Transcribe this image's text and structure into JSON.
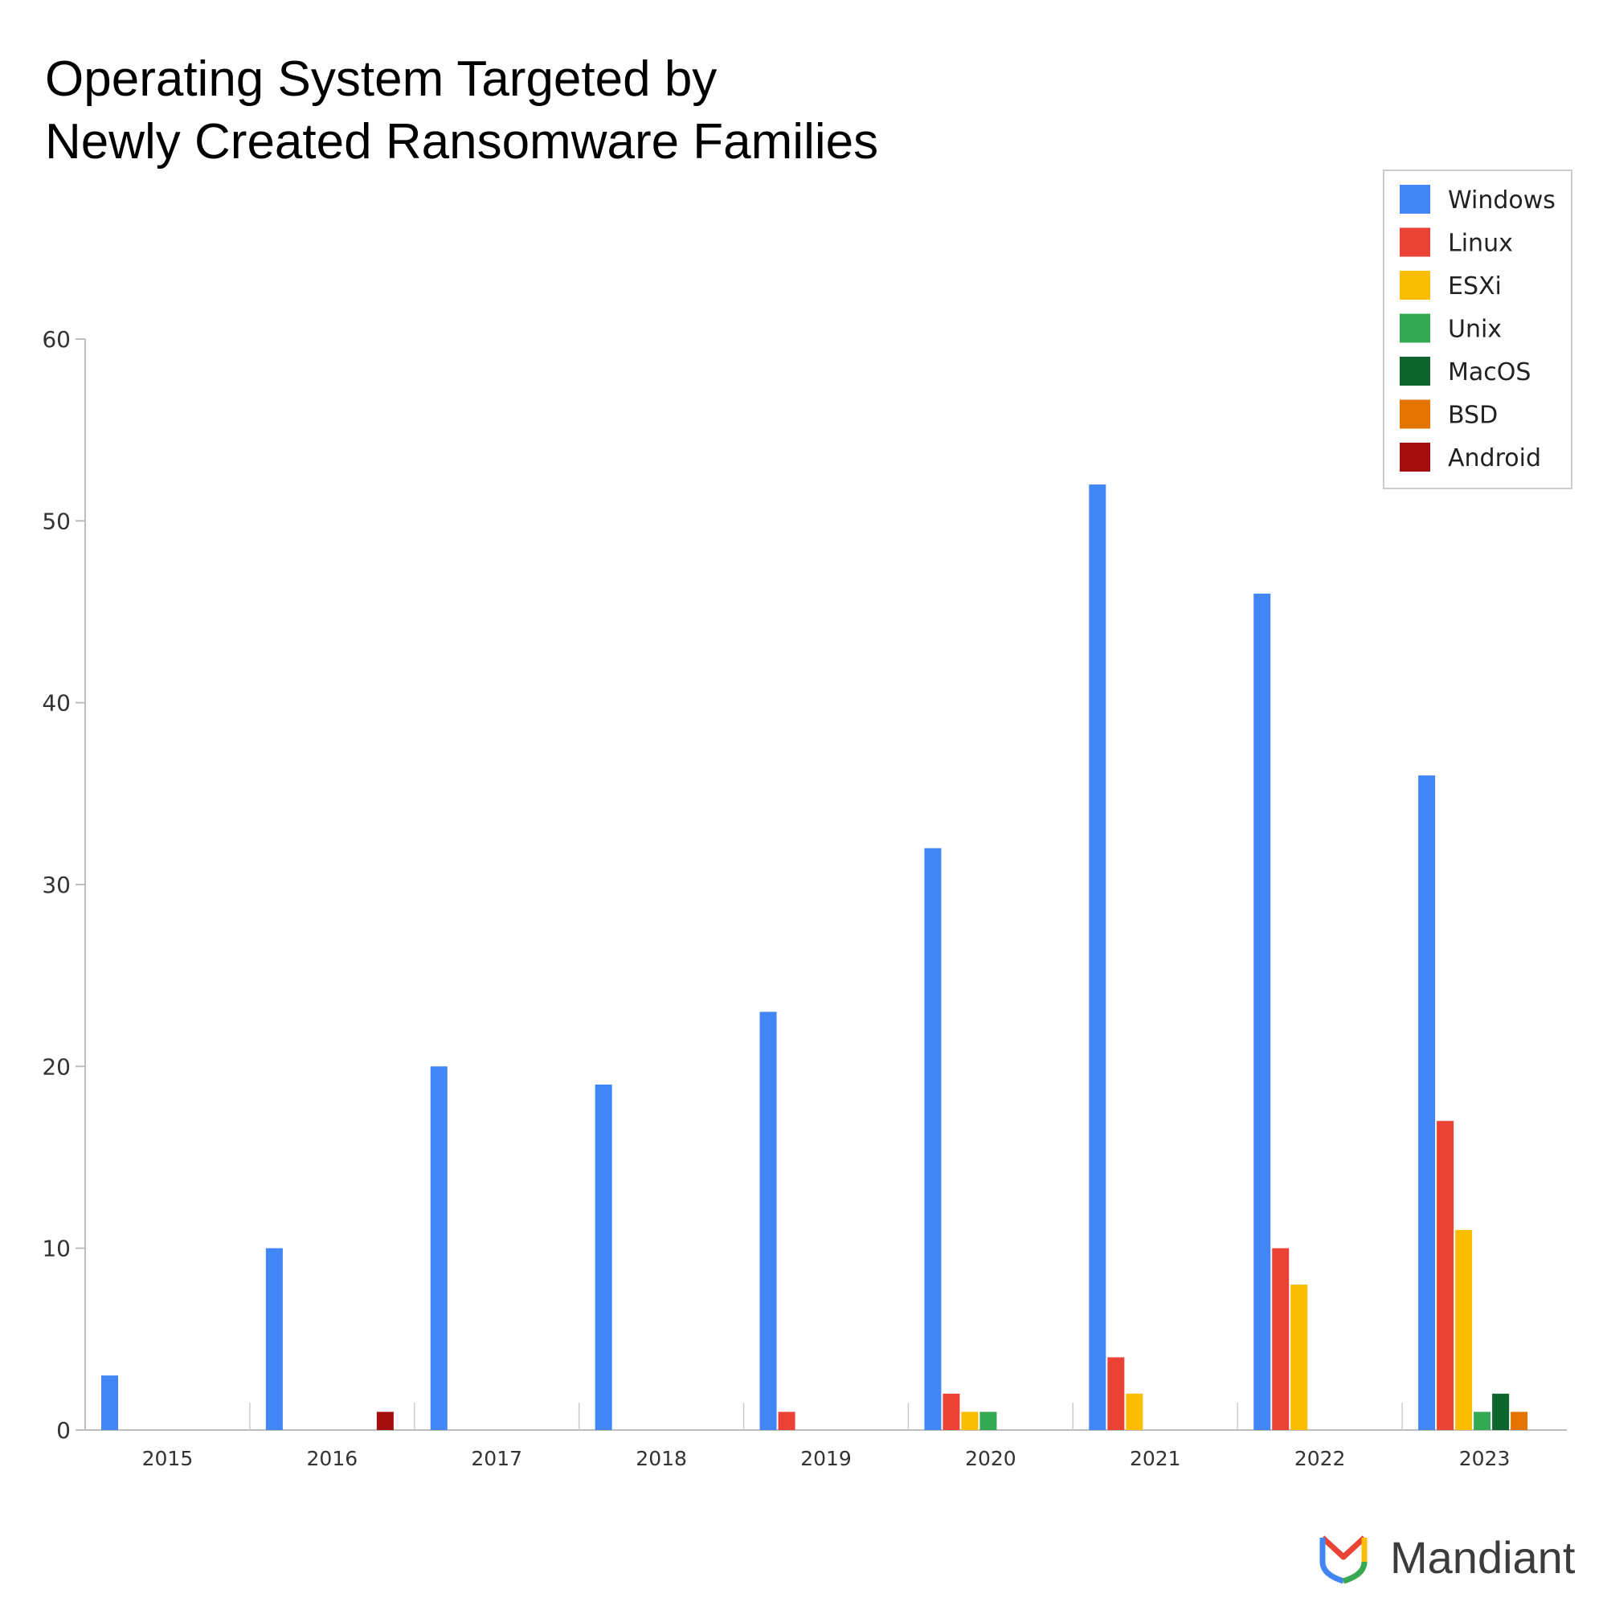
{
  "chart_data": {
    "type": "bar",
    "title_lines": [
      "Operating System Targeted by",
      "Newly Created Ransomware Families"
    ],
    "categories": [
      "2015",
      "2016",
      "2017",
      "2018",
      "2019",
      "2020",
      "2021",
      "2022",
      "2023"
    ],
    "ylim": [
      0,
      60
    ],
    "yticks": [
      "0",
      "10",
      "20",
      "30",
      "40",
      "50",
      "60"
    ],
    "grid": false,
    "legend_position": "top-right",
    "series": [
      {
        "name": "Windows",
        "color": "#4285F4",
        "values": [
          3,
          10,
          20,
          19,
          23,
          32,
          52,
          46,
          36
        ]
      },
      {
        "name": "Linux",
        "color": "#EA4335",
        "values": [
          0,
          0,
          0,
          0,
          1,
          2,
          4,
          10,
          17
        ]
      },
      {
        "name": "ESXi",
        "color": "#FBBC04",
        "values": [
          0,
          0,
          0,
          0,
          0,
          1,
          2,
          8,
          11
        ]
      },
      {
        "name": "Unix",
        "color": "#34A853",
        "values": [
          0,
          0,
          0,
          0,
          0,
          1,
          0,
          0,
          1
        ]
      },
      {
        "name": "MacOS",
        "color": "#0D652D",
        "values": [
          0,
          0,
          0,
          0,
          0,
          0,
          0,
          0,
          2
        ]
      },
      {
        "name": "BSD",
        "color": "#E37400",
        "values": [
          0,
          0,
          0,
          0,
          0,
          0,
          0,
          0,
          1
        ]
      },
      {
        "name": "Android",
        "color": "#A50E0E",
        "values": [
          0,
          1,
          0,
          0,
          0,
          0,
          0,
          0,
          0
        ]
      }
    ]
  },
  "brand": {
    "name": "Mandiant",
    "logo_icon": "mandiant-logo-icon"
  }
}
